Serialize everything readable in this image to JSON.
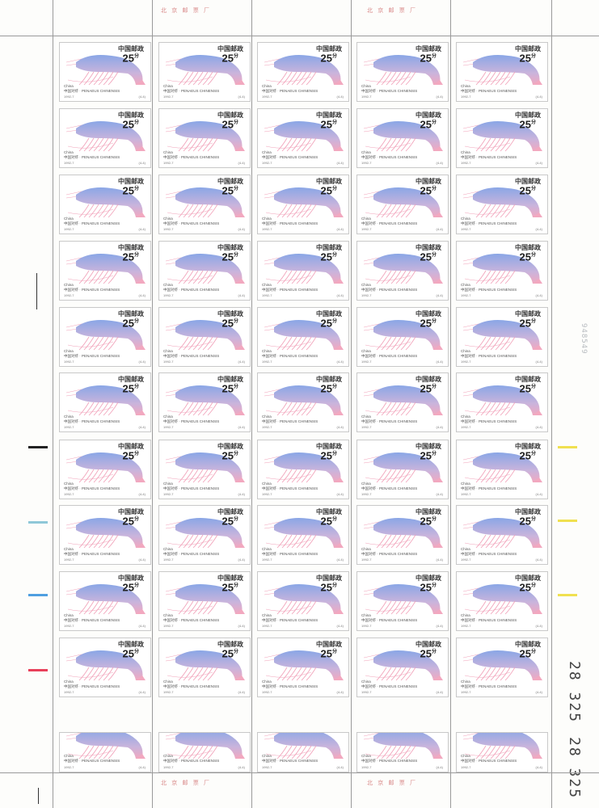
{
  "sheet": {
    "imprint_top": [
      "北 京 邮 票 厂",
      "北 京 邮 票 厂"
    ],
    "imprint_bottom": [
      "北 京 邮 票 厂",
      "北 京 邮 票 厂"
    ],
    "sheet_number": "948549",
    "serial_top": "28 325",
    "serial_bottom": "28 325",
    "color_bars_left": [
      "#222222",
      "#8fc8d8",
      "#4f9fe0",
      "#e8405a"
    ],
    "color_bars_right": [
      "#f0e050",
      "#f0e050",
      "#f0e050"
    ]
  },
  "stamp": {
    "country": "中国邮政",
    "value": "25",
    "value_unit": "分",
    "country_en": "China",
    "caption": "中国对虾 · PENAEUS CHINENSIS",
    "year": "1992-7",
    "code": "(4-4)",
    "icon": "prawn-illustration-icon",
    "colors": {
      "body_blue": "#8aa6e6",
      "body_pink": "#f2a8bf",
      "leg_pink": "#f1a0b8"
    }
  }
}
